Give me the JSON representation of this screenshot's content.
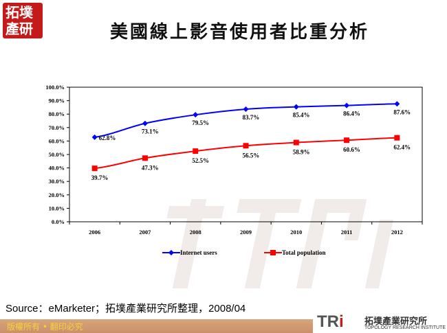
{
  "header": {
    "title": "美國線上影音使用者比重分析",
    "logo_text": "拓墣產研"
  },
  "chart_data": {
    "type": "line",
    "title": "",
    "xlabel": "",
    "ylabel": "",
    "categories": [
      "2006",
      "2007",
      "2008",
      "2009",
      "2010",
      "2011",
      "2012"
    ],
    "ylim": [
      0,
      100
    ],
    "yticks": [
      "0.0%",
      "10.0%",
      "20.0%",
      "30.0%",
      "40.0%",
      "50.0%",
      "60.0%",
      "70.0%",
      "80.0%",
      "90.0%",
      "100.0%"
    ],
    "grid": false,
    "legend": "bottom",
    "series": [
      {
        "name": "Internet users",
        "values": [
          62.8,
          73.1,
          79.5,
          83.7,
          85.4,
          86.4,
          87.6
        ],
        "labels": [
          "62.8%",
          "73.1%",
          "79.5%",
          "83.7%",
          "85.4%",
          "86.4%",
          "87.6%"
        ],
        "color": "#0000ff",
        "marker": "diamond"
      },
      {
        "name": "Total population",
        "values": [
          39.7,
          47.3,
          52.5,
          56.5,
          58.9,
          60.6,
          62.4
        ],
        "labels": [
          "39.7%",
          "47.3%",
          "52.5%",
          "56.5%",
          "58.9%",
          "60.6%",
          "62.4%"
        ],
        "color": "#ff0000",
        "marker": "square"
      }
    ]
  },
  "footer": {
    "source": "Source：eMarketer；拓墣產業研究所整理，2008/04",
    "copyright": "版權所有 • 翻印必究",
    "tri_logo": "TRi",
    "tri_cn": "拓墣產業研究所",
    "tri_en": "TOPOLOGY RESEARCH INSTITUTE"
  }
}
